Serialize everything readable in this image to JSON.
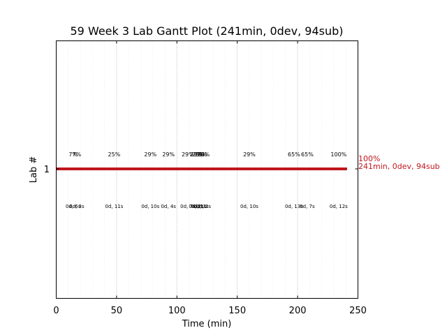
{
  "chart_data": {
    "type": "gantt",
    "title": "59 Week 3 Lab Gantt Plot (241min, 0dev, 94sub)",
    "xlabel": "Time (min)",
    "ylabel": "Lab #",
    "xlim": [
      0,
      250
    ],
    "xticks": [
      "0",
      "50",
      "100",
      "150",
      "200",
      "250"
    ],
    "xtick_values": [
      0,
      50,
      100,
      150,
      200,
      250
    ],
    "grid": "vertical-dotted",
    "rows": [
      {
        "label": "1",
        "start": 0,
        "end": 241,
        "color": "#c0161c"
      }
    ],
    "end_annotation": {
      "x": 241,
      "line1": "100%",
      "line2": "241min, 0dev, 94sub",
      "color": "#c0161c"
    },
    "milestones": [
      {
        "x": 14,
        "pct": "7%",
        "delta": "0d, 6s"
      },
      {
        "x": 17,
        "pct": "7%",
        "delta": "0d, 3s"
      },
      {
        "x": 48,
        "pct": "25%",
        "delta": "0d, 11s"
      },
      {
        "x": 78,
        "pct": "29%",
        "delta": "0d, 10s"
      },
      {
        "x": 93,
        "pct": "29%",
        "delta": "0d, 4s"
      },
      {
        "x": 109,
        "pct": "29%",
        "delta": "0d, 7s"
      },
      {
        "x": 116,
        "pct": "29%",
        "delta": "0d, 2s"
      },
      {
        "x": 118,
        "pct": "29%",
        "delta": "0d, 1s"
      },
      {
        "x": 120,
        "pct": "29%",
        "delta": "0d, 3s"
      },
      {
        "x": 122,
        "pct": "29%",
        "delta": "0d, 2s"
      },
      {
        "x": 160,
        "pct": "29%",
        "delta": "0d, 10s"
      },
      {
        "x": 197,
        "pct": "65%",
        "delta": "0d, 13s"
      },
      {
        "x": 208,
        "pct": "65%",
        "delta": "0d, 7s"
      },
      {
        "x": 234,
        "pct": "100%",
        "delta": "0d, 12s"
      }
    ],
    "colors": {
      "bar": "#c0161c",
      "grid": "#b0b0b0",
      "minor_grid": "#ececec",
      "axis": "#000000"
    }
  }
}
